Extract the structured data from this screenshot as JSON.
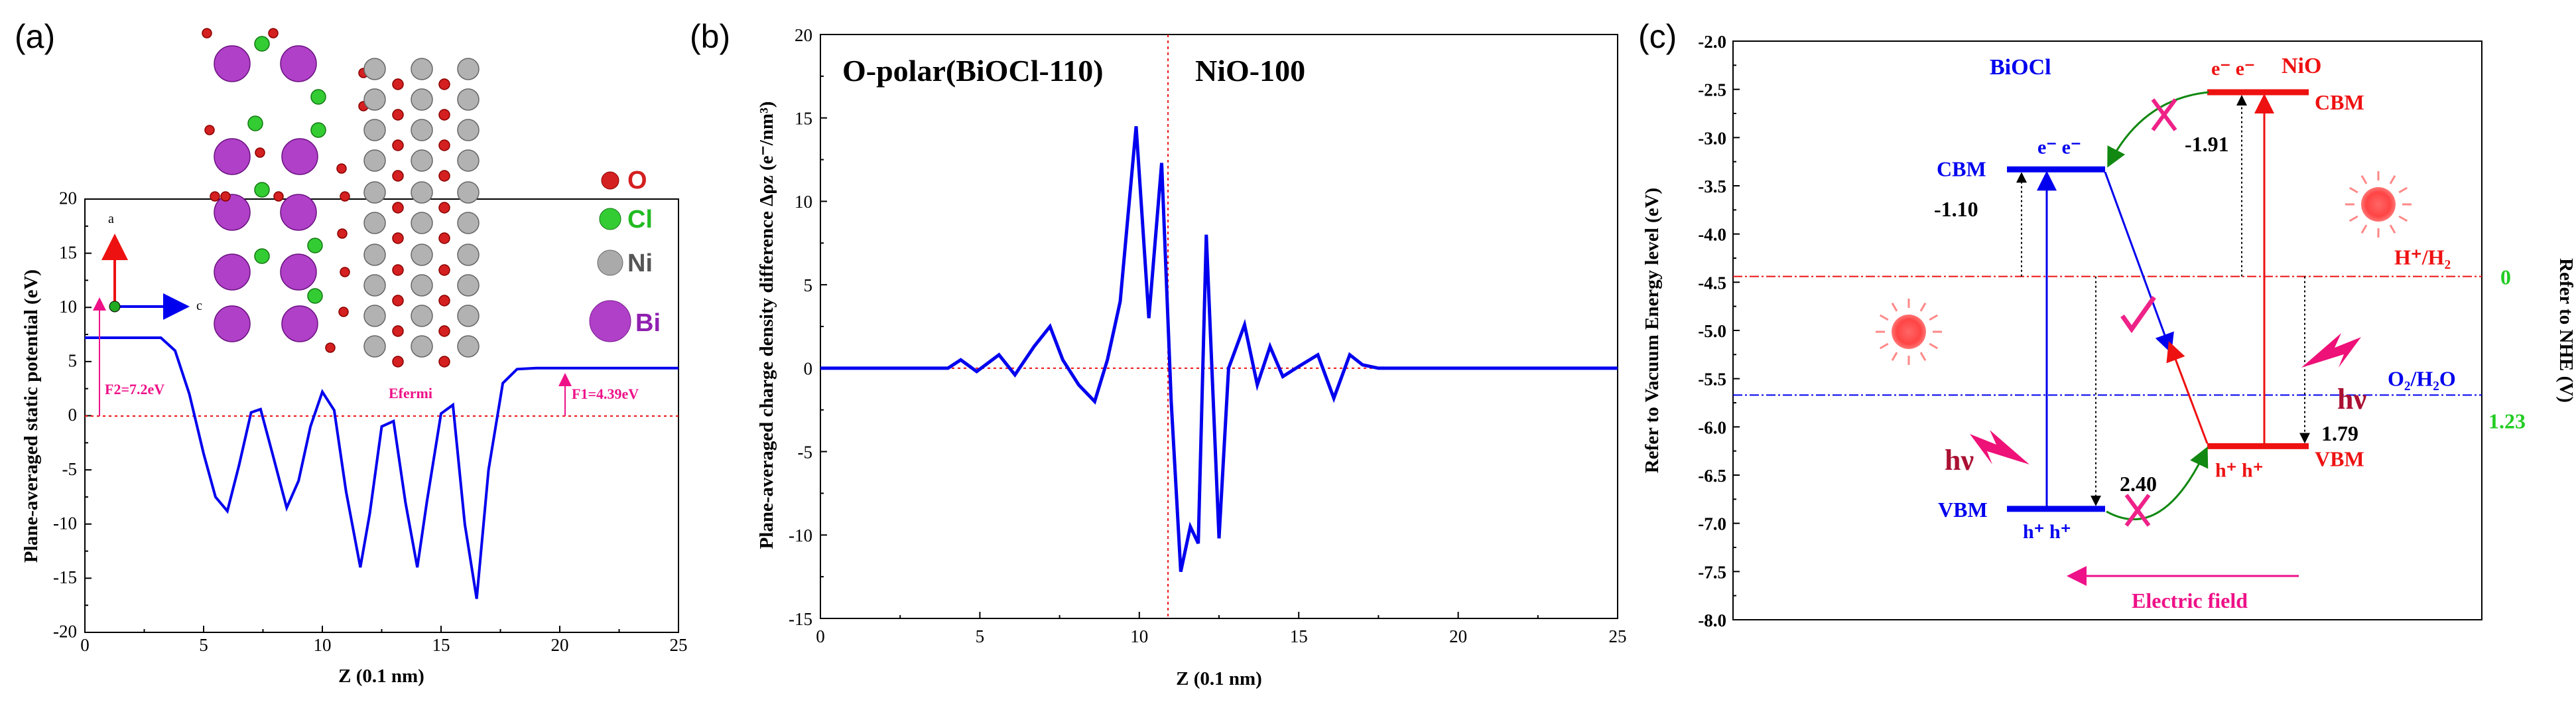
{
  "chart_data": [
    {
      "panel": "(a)",
      "type": "line",
      "xlabel": "Z (0.1 nm)",
      "ylabel": "Plane-averaged static potential (eV)",
      "xlim": [
        0,
        25
      ],
      "ylim": [
        -20,
        20
      ],
      "xticks": [
        "0",
        "5",
        "10",
        "15",
        "20",
        "25"
      ],
      "yticks": [
        "-20",
        "-15",
        "-10",
        "-5",
        "0",
        "5",
        "10",
        "15",
        "20"
      ],
      "series": [
        {
          "color": "#0000ee",
          "x": [
            0,
            3.2,
            3.8,
            4.4,
            5.0,
            5.5,
            6.0,
            6.5,
            7.0,
            7.4,
            7.9,
            8.5,
            9.0,
            9.5,
            10.0,
            10.5,
            11.0,
            11.6,
            12.0,
            12.5,
            13.0,
            13.5,
            14.0,
            14.4,
            15.0,
            15.5,
            16.0,
            16.5,
            17.0,
            17.6,
            18.2,
            19,
            20,
            25
          ],
          "y": [
            7.2,
            7.2,
            6.0,
            2.0,
            -3.5,
            -7.5,
            -8.8,
            -4.5,
            0.3,
            0.6,
            -3.5,
            -8.5,
            -6.0,
            -1.0,
            2.2,
            0.5,
            -7.0,
            -14.0,
            -9.0,
            -1.0,
            -0.5,
            -8.0,
            -14.0,
            -8.0,
            0.2,
            1.0,
            -10.0,
            -16.9,
            -5.0,
            3.0,
            4.3,
            4.39,
            4.39,
            4.39
          ]
        }
      ],
      "annotations": [
        "F2=7.2eV",
        "F1=4.39eV",
        "Efermi"
      ],
      "legend_atoms": [
        "O",
        "Cl",
        "Ni",
        "Bi"
      ],
      "axes_labels": [
        "a",
        "c"
      ]
    },
    {
      "panel": "(b)",
      "type": "line",
      "xlabel": "Z (0.1 nm)",
      "ylabel": "Plane-averaged charge density difference Δρz (e⁻/nm³)",
      "xlim": [
        0,
        25
      ],
      "ylim": [
        -15,
        20
      ],
      "xticks": [
        "0",
        "5",
        "10",
        "15",
        "20",
        "25"
      ],
      "yticks": [
        "-15",
        "-10",
        "-5",
        "0",
        "5",
        "10",
        "15",
        "20"
      ],
      "series": [
        {
          "color": "#0000ee",
          "x": [
            0,
            4.0,
            4.4,
            4.9,
            5.6,
            6.1,
            6.7,
            7.2,
            7.6,
            8.1,
            8.6,
            9.0,
            9.4,
            9.9,
            10.3,
            10.7,
            11.0,
            11.3,
            11.6,
            11.85,
            12.1,
            12.5,
            12.8,
            13.3,
            13.7,
            14.1,
            14.5,
            15.0,
            15.6,
            16.1,
            16.6,
            17.0,
            17.5,
            18.5,
            25
          ],
          "y": [
            0,
            0,
            0.5,
            -0.2,
            0.8,
            -0.4,
            1.3,
            2.5,
            0.5,
            -1.0,
            -2.0,
            0.5,
            4.0,
            14.5,
            3.0,
            12.3,
            -2.0,
            -12.2,
            -9.5,
            -10.5,
            8.0,
            -10.2,
            0.0,
            2.6,
            -1.0,
            1.3,
            -0.5,
            0.1,
            0.8,
            -1.8,
            0.8,
            0.2,
            0,
            0,
            0
          ]
        }
      ],
      "annotations": [
        "O-polar(BiOCl-110)",
        "NiO-100"
      ],
      "divider_x": 10.9
    },
    {
      "panel": "(c)",
      "type": "diagram",
      "ylabel": "Refer to Vacuum Energy level (eV)",
      "ylabel_right": "Refer to NHE (V)",
      "ylim": [
        -8.0,
        -2.0
      ],
      "yticks": [
        "-2.0",
        "-2.5",
        "-3.0",
        "-3.5",
        "-4.0",
        "-4.5",
        "-5.0",
        "-5.5",
        "-6.0",
        "-6.5",
        "-7.0",
        "-7.5",
        "-8.0"
      ],
      "levels": {
        "BiOCl_CBM": -3.33,
        "BiOCl_VBM": -6.85,
        "NiO_CBM": -2.53,
        "NiO_VBM": -6.2,
        "H_H2": -4.44,
        "O2_H2O": -5.67
      },
      "labels": {
        "bioc": "BiOCl",
        "nio": "NiO",
        "cbm": "CBM",
        "vbm": "VBM",
        "bioc_cbm_val": "-1.10",
        "nio_cbm_val": "-1.91",
        "bioc_vbm_val": "2.40",
        "nio_vbm_val": "1.79",
        "h_label": "H⁺/H₂",
        "o_label": "O₂/H₂O",
        "nhe0": "0",
        "nhe123": "1.23",
        "hv": "hν",
        "efield": "Electric field",
        "e_pair": "e⁻  e⁻",
        "h_pair": "h⁺  h⁺"
      }
    }
  ]
}
